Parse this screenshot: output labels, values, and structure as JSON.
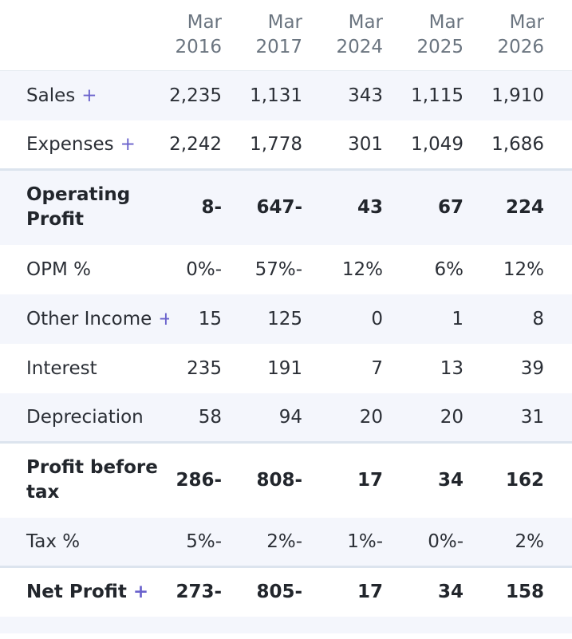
{
  "columns": [
    {
      "month": "Mar",
      "year": "2016"
    },
    {
      "month": "Mar",
      "year": "2017"
    },
    {
      "month": "Mar",
      "year": "2024"
    },
    {
      "month": "Mar",
      "year": "2025"
    },
    {
      "month": "Mar",
      "year": "2026"
    }
  ],
  "expand_symbol": "+",
  "rows": [
    {
      "label": "Sales",
      "values": [
        "2,235",
        "1,131",
        "343",
        "1,115",
        "1,910"
      ]
    },
    {
      "label": "Expenses",
      "values": [
        "2,242",
        "1,778",
        "301",
        "1,049",
        "1,686"
      ]
    },
    {
      "label": "Operating Profit",
      "values": [
        "-8",
        "-647",
        "43",
        "67",
        "224"
      ]
    },
    {
      "label": "OPM %",
      "values": [
        "-0%",
        "-57%",
        "12%",
        "6%",
        "12%"
      ]
    },
    {
      "label": "Other Income",
      "values": [
        "15",
        "125",
        "0",
        "1",
        "8"
      ]
    },
    {
      "label": "Interest",
      "values": [
        "235",
        "191",
        "7",
        "13",
        "39"
      ]
    },
    {
      "label": "Depreciation",
      "values": [
        "58",
        "94",
        "20",
        "20",
        "31"
      ]
    },
    {
      "label": "Profit before tax",
      "values": [
        "-286",
        "-808",
        "17",
        "34",
        "162"
      ]
    },
    {
      "label": "Tax %",
      "values": [
        "-5%",
        "-2%",
        "-1%",
        "-0%",
        "2%"
      ]
    },
    {
      "label": "Net Profit",
      "values": [
        "-273",
        "-805",
        "17",
        "34",
        "158"
      ]
    }
  ]
}
